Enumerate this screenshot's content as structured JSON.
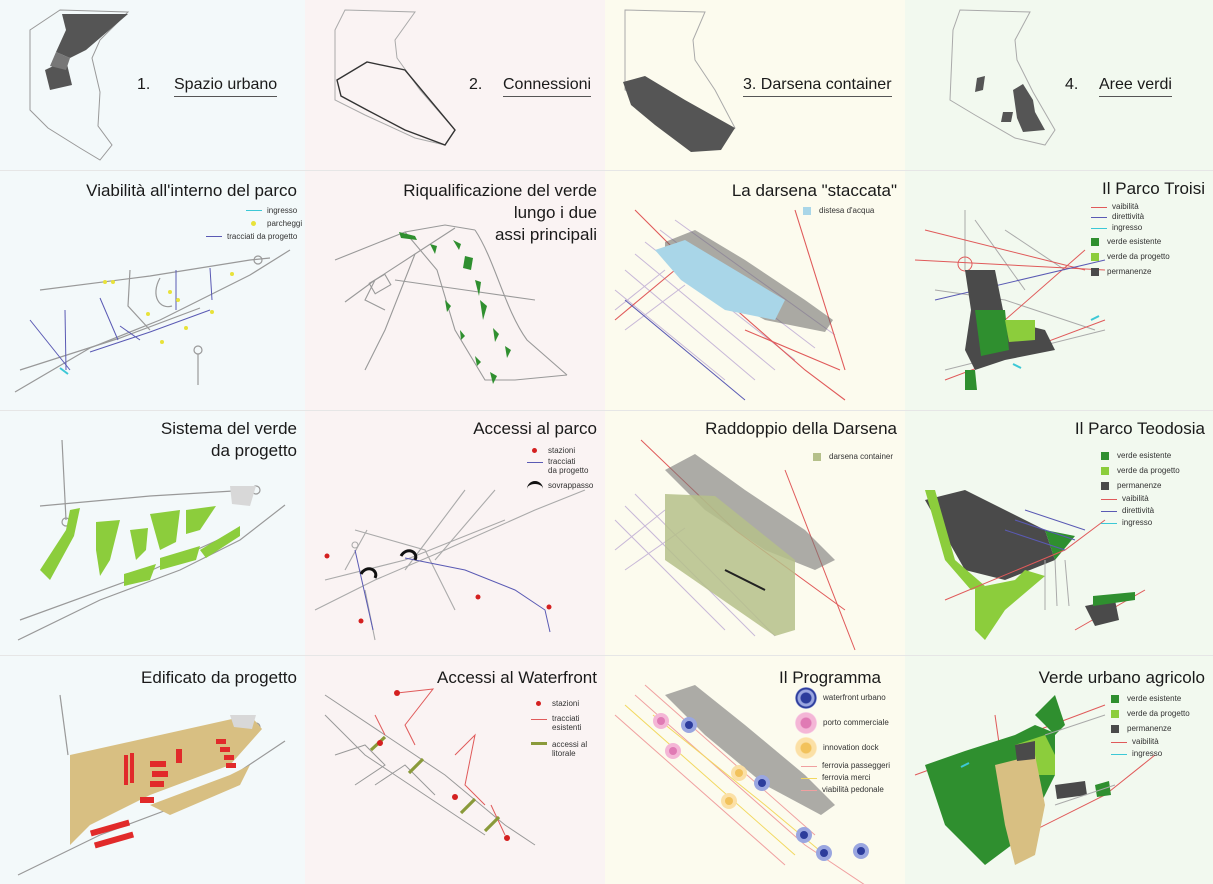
{
  "headers": [
    {
      "number": "1.",
      "label": "Spazio urbano"
    },
    {
      "number": "2.",
      "label": "Connessioni"
    },
    {
      "number": "",
      "label": "3. Darsena container"
    },
    {
      "number": "4.",
      "label": "Aree verdi"
    }
  ],
  "panels": {
    "c1r1": {
      "title": "Viabilità all'interno del parco",
      "legend": [
        "ingresso",
        "parcheggi",
        "tracciati da progetto"
      ]
    },
    "c1r2": {
      "title_line1": "Sistema del verde",
      "title_line2": "da progetto"
    },
    "c1r3": {
      "title": "Edificato da progetto"
    },
    "c2r1": {
      "title_line1": "Riqualificazione del verde",
      "title_line2": "lungo i due",
      "title_line3": "assi principali"
    },
    "c2r2": {
      "title": "Accessi al parco",
      "legend": {
        "stazioni": "stazioni",
        "tracciati_1": "tracciati",
        "tracciati_2": "da progetto",
        "sovrappasso": "sovrappasso"
      }
    },
    "c2r3": {
      "title": "Accessi al Waterfront",
      "legend": {
        "stazioni": "stazioni",
        "tracciati_1": "tracciati",
        "tracciati_2": "esistenti",
        "accessi_1": "accessi al",
        "accessi_2": "litorale"
      }
    },
    "c3r1": {
      "title": "La darsena \"staccata\"",
      "legend": [
        "distesa d'acqua"
      ]
    },
    "c3r2": {
      "title": "Raddoppio della Darsena",
      "legend": [
        "darsena container"
      ]
    },
    "c3r3": {
      "title": "Il Programma",
      "legend": [
        "waterfront urbano",
        "porto commerciale",
        "innovation dock",
        "ferrovia passeggeri",
        "ferrovia merci",
        "viabilità pedonale"
      ]
    },
    "c4r1": {
      "title": "Il Parco Troisi",
      "legend": [
        "vaibilità",
        "direttività",
        "ingresso",
        "verde esistente",
        "verde da progetto",
        "permanenze"
      ]
    },
    "c4r2": {
      "title": "Il Parco Teodosia",
      "legend": [
        "verde esistente",
        "verde da progetto",
        "permanenze",
        "vaibilità",
        "direttività",
        "ingresso"
      ]
    },
    "c4r3": {
      "title": "Verde urbano agricolo",
      "legend": [
        "verde esistente",
        "verde da progetto",
        "permanenze",
        "vaibilità",
        "ingresso"
      ]
    }
  },
  "colors": {
    "viabilita": "#e05a5a",
    "direttivita": "#5a5ab4",
    "ingresso": "#3cc8d6",
    "verde_esistente": "#2f8f2f",
    "verde_da_progetto": "#8ccd3c",
    "permanenze": "#4a4a4a",
    "parcheggi": "#e8e23a",
    "acqua": "#a9d6e8",
    "darsena_container": "#b5c08a",
    "stazioni": "#d42020",
    "edificato": "#d8bf82",
    "waterfront_urbano": "#2c3c9c",
    "porto_commerciale": "#e07ab4",
    "innovation_dock": "#f2c25c",
    "ferrovia_passeggeri": "#f0a0a0",
    "ferrovia_merci": "#f2d860"
  }
}
